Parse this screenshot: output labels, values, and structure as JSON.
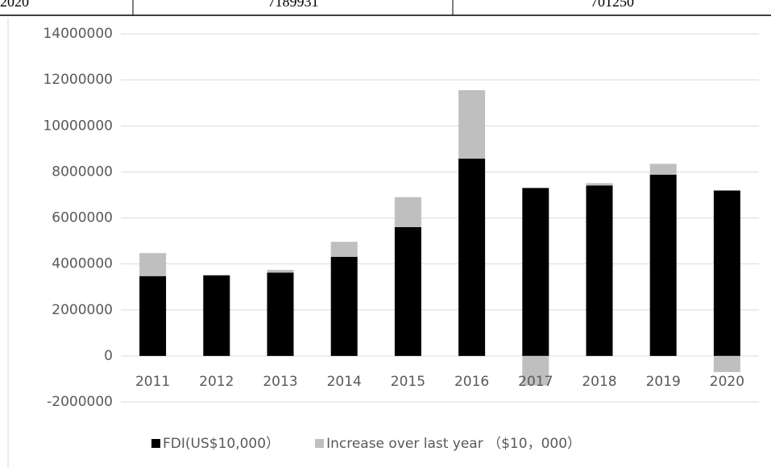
{
  "table_fragment": {
    "cells": [
      "2020",
      "7189931",
      "701250"
    ]
  },
  "chart_data": {
    "type": "stacked-bar",
    "categories": [
      "2011",
      "2012",
      "2013",
      "2014",
      "2015",
      "2016",
      "2017",
      "2018",
      "2019",
      "2020"
    ],
    "series": [
      {
        "name": "FDI(US$10,000）",
        "color": "#000000",
        "values": [
          3470000,
          3500000,
          3620000,
          4310000,
          5600000,
          8580000,
          7300000,
          7410000,
          7880000,
          7189931
        ]
      },
      {
        "name": "Increase over last year （$10，000）",
        "color": "#bfbfbf",
        "values": [
          1000000,
          30000,
          120000,
          650000,
          1300000,
          2970000,
          -1280000,
          100000,
          470000,
          -701250
        ]
      }
    ],
    "ylim": [
      -2000000,
      14000000
    ],
    "yticks": [
      -2000000,
      0,
      2000000,
      4000000,
      6000000,
      8000000,
      10000000,
      12000000,
      14000000
    ],
    "grid": true,
    "legend": "bottom"
  }
}
